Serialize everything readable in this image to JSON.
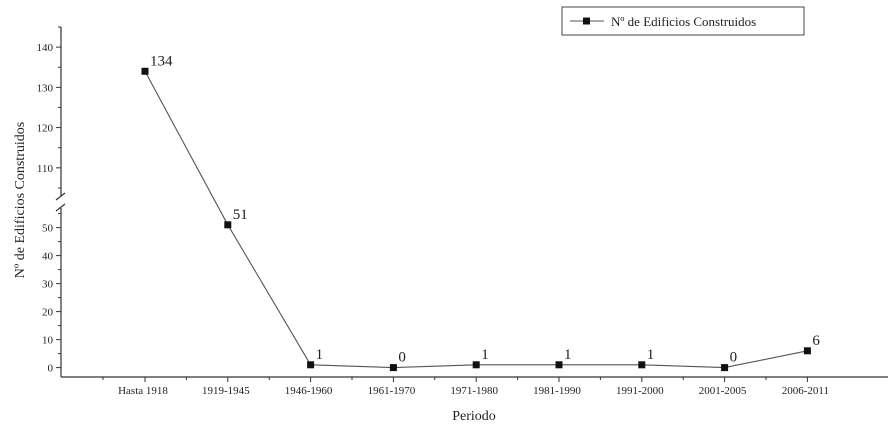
{
  "chart_data": {
    "type": "line",
    "xlabel": "Periodo",
    "ylabel": "Nº de Edificios Construidos",
    "categories": [
      "Hasta 1918",
      "1919-1945",
      "1946-1960",
      "1961-1970",
      "1971-1980",
      "1981-1990",
      "1991-2000",
      "2001-2005",
      "2006-2011"
    ],
    "series": [
      {
        "name": "Nº de Edificios Construidos",
        "values": [
          134,
          51,
          1,
          0,
          1,
          1,
          1,
          0,
          6
        ],
        "labels": [
          "134",
          "51",
          "1",
          "0",
          "1",
          "1",
          "1",
          "0",
          "6"
        ]
      }
    ],
    "y_axis_break": {
      "lower_range": [
        -3,
        57
      ],
      "upper_range": [
        103,
        145
      ]
    },
    "y_ticks_lower": [
      "0",
      "10",
      "20",
      "30",
      "40",
      "50"
    ],
    "y_ticks_upper": [
      "110",
      "120",
      "130",
      "140"
    ],
    "legend_position": "top-right",
    "grid": false,
    "marker": "square",
    "colors": {
      "line": "#555555",
      "marker": "#111111",
      "axis": "#333333"
    }
  }
}
